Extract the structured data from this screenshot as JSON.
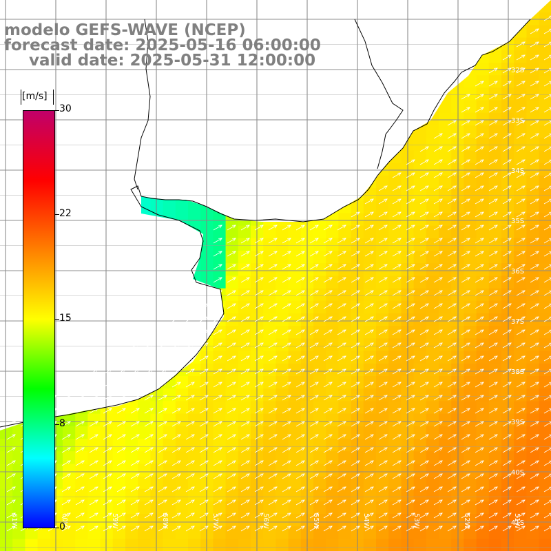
{
  "title": {
    "model": "modelo GEFS-WAVE (NCEP)",
    "forecast": "forecast date: 2025-05-16 06:00:00",
    "valid": "valid date: 2025-05-31 12:00:00"
  },
  "colorbar": {
    "units": "[m/s]",
    "min": 0,
    "max": 30,
    "ticks": [
      "30",
      "22",
      "15",
      "8",
      "0"
    ],
    "tick_values": [
      30,
      22,
      15,
      8,
      0
    ],
    "colors": [
      "#0000ff",
      "#00ffff",
      "#00ff00",
      "#ffff00",
      "#ff8000",
      "#ff0000",
      "#c0006a"
    ]
  },
  "map": {
    "lon_range": [
      -61,
      -50
    ],
    "lat_range": [
      -41,
      -31
    ],
    "lat_labels": [
      "32S",
      "33S",
      "34S",
      "35S",
      "36S",
      "37S",
      "38S",
      "39S",
      "40S",
      "41S"
    ],
    "lon_labels": [
      "61W",
      "60W",
      "59W",
      "58W",
      "57W",
      "56W",
      "55W",
      "54W",
      "53W",
      "52W",
      "51W"
    ],
    "land_color": "#ffffff",
    "coast_color": "#000000",
    "grid_color": "#808080",
    "arrow_color": "#ffffff",
    "wind_direction": "northeast"
  }
}
